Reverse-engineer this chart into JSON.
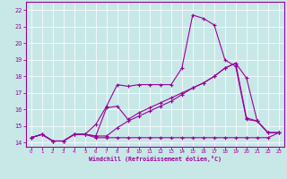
{
  "bg_color": "#c8e8e8",
  "line_color": "#990099",
  "grid_color": "#ffffff",
  "xlabel": "Windchill (Refroidissement éolien,°C)",
  "xmin": -0.5,
  "xmax": 23.5,
  "ymin": 13.75,
  "ymax": 22.5,
  "ytick_vals": [
    14,
    15,
    16,
    17,
    18,
    19,
    20,
    21,
    22
  ],
  "xtick_vals": [
    0,
    1,
    2,
    3,
    4,
    5,
    6,
    7,
    8,
    9,
    10,
    11,
    12,
    13,
    14,
    15,
    16,
    17,
    18,
    19,
    20,
    21,
    22,
    23
  ],
  "lines": [
    [
      14.3,
      14.5,
      14.1,
      14.1,
      14.5,
      14.5,
      14.3,
      14.3,
      14.3,
      14.3,
      14.3,
      14.3,
      14.3,
      14.3,
      14.3,
      14.3,
      14.3,
      14.3,
      14.3,
      14.3,
      14.3,
      14.3,
      14.3,
      14.6
    ],
    [
      14.3,
      14.5,
      14.1,
      14.1,
      14.5,
      14.5,
      15.1,
      16.2,
      17.5,
      17.4,
      17.5,
      17.5,
      17.5,
      17.5,
      18.5,
      21.7,
      21.5,
      21.1,
      19.0,
      18.6,
      15.4,
      15.3,
      14.6,
      14.6
    ],
    [
      14.3,
      14.5,
      14.1,
      14.1,
      14.5,
      14.5,
      14.4,
      14.4,
      14.9,
      15.3,
      15.6,
      15.9,
      16.2,
      16.5,
      16.9,
      17.3,
      17.6,
      18.0,
      18.5,
      18.8,
      15.5,
      15.3,
      14.6,
      14.6
    ],
    [
      14.3,
      14.5,
      14.1,
      14.1,
      14.5,
      14.5,
      14.4,
      16.1,
      16.2,
      15.4,
      15.8,
      16.1,
      16.4,
      16.7,
      17.0,
      17.3,
      17.6,
      18.0,
      18.5,
      18.8,
      17.9,
      15.3,
      14.6,
      14.6
    ]
  ]
}
